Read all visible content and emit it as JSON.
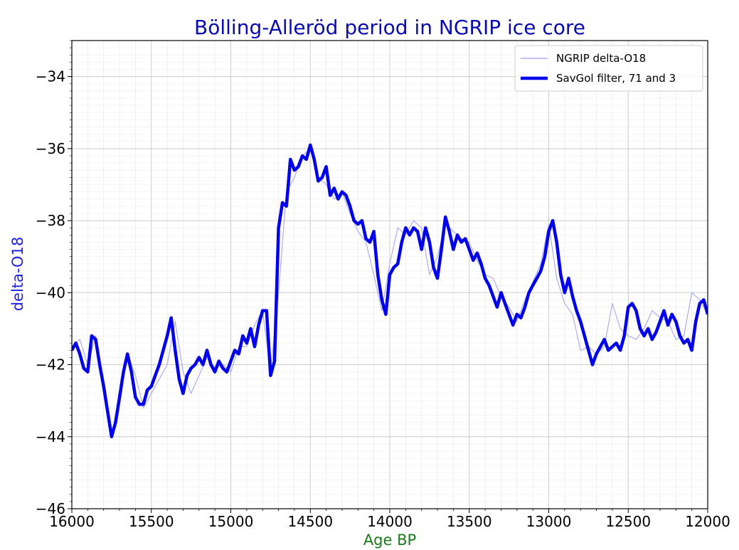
{
  "chart_data": {
    "type": "line",
    "title": "Bölling-Alleröd period in NGRIP ice core",
    "xlabel": "Age BP",
    "ylabel": "delta-O18",
    "xlim": [
      16000,
      12000
    ],
    "x_reversed": true,
    "ylim": [
      -46,
      -33
    ],
    "xticks": [
      16000,
      15500,
      15000,
      14500,
      14000,
      13500,
      13000,
      12500,
      12000
    ],
    "yticks": [
      -46,
      -44,
      -42,
      -40,
      -38,
      -36,
      -34
    ],
    "grid": true,
    "legend_position": "top-right",
    "series": [
      {
        "name": "NGRIP delta-O18",
        "color": "#9e9ef5",
        "style": "thin-noisy",
        "x": [
          16000,
          15950,
          15900,
          15850,
          15800,
          15750,
          15700,
          15650,
          15600,
          15550,
          15500,
          15450,
          15400,
          15350,
          15300,
          15250,
          15200,
          15150,
          15100,
          15050,
          15000,
          14950,
          14900,
          14850,
          14800,
          14750,
          14700,
          14650,
          14600,
          14550,
          14500,
          14450,
          14400,
          14350,
          14300,
          14250,
          14200,
          14150,
          14100,
          14050,
          14000,
          13950,
          13900,
          13850,
          13800,
          13750,
          13700,
          13650,
          13600,
          13550,
          13500,
          13450,
          13400,
          13350,
          13300,
          13250,
          13200,
          13150,
          13100,
          13050,
          13000,
          12950,
          12900,
          12850,
          12800,
          12750,
          12700,
          12650,
          12600,
          12550,
          12500,
          12450,
          12400,
          12350,
          12300,
          12250,
          12200,
          12150,
          12100,
          12050,
          12000
        ],
        "y": [
          -41.5,
          -41.3,
          -42.0,
          -41.2,
          -42.6,
          -44.0,
          -42.8,
          -41.7,
          -42.3,
          -43.2,
          -42.8,
          -42.4,
          -42.0,
          -40.8,
          -42.2,
          -42.8,
          -42.3,
          -41.8,
          -42.1,
          -42.0,
          -42.2,
          -41.5,
          -41.5,
          -40.9,
          -40.5,
          -42.2,
          -40.0,
          -37.2,
          -36.8,
          -36.2,
          -36.0,
          -36.8,
          -37.0,
          -37.4,
          -37.2,
          -37.8,
          -38.3,
          -38.6,
          -39.5,
          -40.5,
          -39.2,
          -38.2,
          -38.4,
          -38.0,
          -38.2,
          -39.5,
          -39.0,
          -38.1,
          -38.3,
          -38.5,
          -38.6,
          -39.1,
          -39.5,
          -39.6,
          -40.1,
          -40.4,
          -40.8,
          -40.2,
          -39.7,
          -39.2,
          -38.1,
          -39.6,
          -40.3,
          -40.6,
          -41.6,
          -41.5,
          -41.7,
          -41.5,
          -40.3,
          -41.0,
          -41.2,
          -41.3,
          -41.0,
          -40.5,
          -40.7,
          -40.8,
          -41.3,
          -41.2,
          -40.0,
          -40.2,
          -40.6
        ]
      },
      {
        "name": "SavGol filter, 71 and 3",
        "color": "#0000ee",
        "style": "thick-smooth",
        "x": [
          16000,
          15975,
          15950,
          15925,
          15900,
          15875,
          15850,
          15825,
          15800,
          15775,
          15750,
          15725,
          15700,
          15675,
          15650,
          15625,
          15600,
          15575,
          15550,
          15525,
          15500,
          15475,
          15450,
          15425,
          15400,
          15375,
          15350,
          15325,
          15300,
          15275,
          15250,
          15225,
          15200,
          15175,
          15150,
          15125,
          15100,
          15075,
          15050,
          15025,
          15000,
          14975,
          14950,
          14925,
          14900,
          14875,
          14850,
          14825,
          14800,
          14775,
          14750,
          14725,
          14700,
          14675,
          14650,
          14625,
          14600,
          14575,
          14550,
          14525,
          14500,
          14475,
          14450,
          14425,
          14400,
          14375,
          14350,
          14325,
          14300,
          14275,
          14250,
          14225,
          14200,
          14175,
          14150,
          14125,
          14100,
          14075,
          14050,
          14025,
          14000,
          13975,
          13950,
          13925,
          13900,
          13875,
          13850,
          13825,
          13800,
          13775,
          13750,
          13725,
          13700,
          13675,
          13650,
          13625,
          13600,
          13575,
          13550,
          13525,
          13500,
          13475,
          13450,
          13425,
          13400,
          13375,
          13350,
          13325,
          13300,
          13275,
          13250,
          13225,
          13200,
          13175,
          13150,
          13125,
          13100,
          13075,
          13050,
          13025,
          13000,
          12975,
          12950,
          12925,
          12900,
          12875,
          12850,
          12825,
          12800,
          12775,
          12750,
          12725,
          12700,
          12675,
          12650,
          12625,
          12600,
          12575,
          12550,
          12525,
          12500,
          12475,
          12450,
          12425,
          12400,
          12375,
          12350,
          12325,
          12300,
          12275,
          12250,
          12225,
          12200,
          12175,
          12150,
          12125,
          12100,
          12075,
          12050,
          12025,
          12000
        ],
        "y": [
          -41.6,
          -41.4,
          -41.7,
          -42.1,
          -42.2,
          -41.2,
          -41.3,
          -42.0,
          -42.6,
          -43.3,
          -44.0,
          -43.6,
          -42.9,
          -42.2,
          -41.7,
          -42.2,
          -42.9,
          -43.1,
          -43.1,
          -42.7,
          -42.6,
          -42.3,
          -42.0,
          -41.6,
          -41.2,
          -40.7,
          -41.6,
          -42.4,
          -42.8,
          -42.3,
          -42.1,
          -42.0,
          -41.8,
          -42.0,
          -41.6,
          -42.0,
          -42.2,
          -41.9,
          -42.1,
          -42.2,
          -41.9,
          -41.6,
          -41.7,
          -41.2,
          -41.4,
          -41.0,
          -41.5,
          -40.9,
          -40.5,
          -40.5,
          -42.3,
          -41.9,
          -38.2,
          -37.5,
          -37.6,
          -36.3,
          -36.6,
          -36.5,
          -36.2,
          -36.3,
          -35.9,
          -36.3,
          -36.9,
          -36.8,
          -36.5,
          -37.3,
          -37.1,
          -37.4,
          -37.2,
          -37.3,
          -37.6,
          -38.0,
          -38.1,
          -38.0,
          -38.5,
          -38.6,
          -38.3,
          -39.5,
          -40.2,
          -40.6,
          -39.5,
          -39.3,
          -39.2,
          -38.6,
          -38.2,
          -38.4,
          -38.2,
          -38.3,
          -38.8,
          -38.2,
          -38.6,
          -39.3,
          -39.6,
          -38.8,
          -37.9,
          -38.3,
          -38.8,
          -38.4,
          -38.6,
          -38.5,
          -38.8,
          -39.1,
          -38.9,
          -39.2,
          -39.6,
          -39.8,
          -40.1,
          -40.4,
          -40.0,
          -40.3,
          -40.6,
          -40.9,
          -40.6,
          -40.7,
          -40.4,
          -40.0,
          -39.8,
          -39.6,
          -39.4,
          -39.0,
          -38.3,
          -38.0,
          -38.6,
          -39.5,
          -40.0,
          -39.6,
          -40.1,
          -40.5,
          -40.8,
          -41.2,
          -41.6,
          -42.0,
          -41.7,
          -41.5,
          -41.3,
          -41.6,
          -41.5,
          -41.4,
          -41.6,
          -41.2,
          -40.4,
          -40.3,
          -40.5,
          -41.0,
          -41.2,
          -41.0,
          -41.3,
          -41.1,
          -40.8,
          -40.5,
          -40.9,
          -40.6,
          -40.8,
          -41.2,
          -41.4,
          -41.3,
          -41.6,
          -40.8,
          -40.3,
          -40.2,
          -40.6
        ]
      }
    ]
  }
}
